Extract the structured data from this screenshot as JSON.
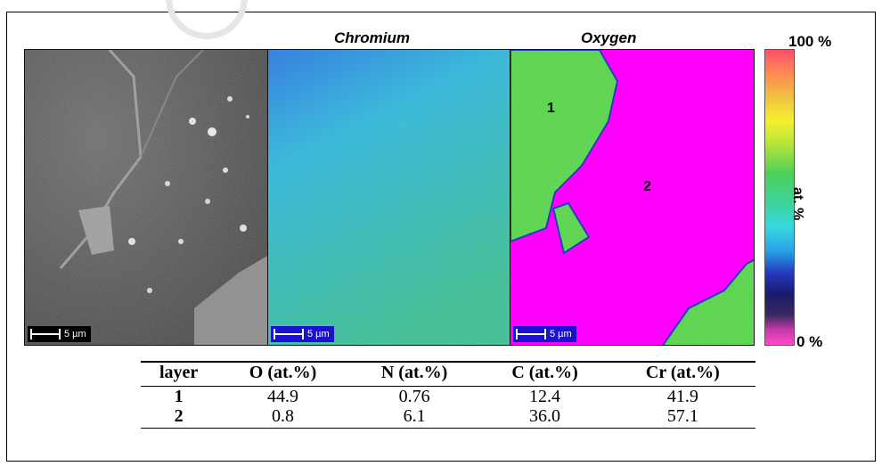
{
  "figure": {
    "panels": [
      {
        "id": "sem",
        "title": "",
        "scale_label": "5 µm"
      },
      {
        "id": "chromium",
        "title": "Chromium",
        "scale_label": "5 µm"
      },
      {
        "id": "oxygen",
        "title": "Oxygen",
        "scale_label": "5 µm"
      }
    ],
    "region_labels": [
      "1",
      "2"
    ],
    "colorbar": {
      "max_label": "100 %",
      "min_label": "0 %",
      "axis_label": "at. %"
    },
    "colors": {
      "magenta": "#ff00ff",
      "green": "#4ccf5a",
      "cyan": "#38c9d6"
    }
  },
  "table": {
    "headers": [
      "layer",
      "O (at.%)",
      "N (at.%)",
      "C (at.%)",
      "Cr (at.%)"
    ],
    "rows": [
      [
        "1",
        "44.9",
        "0.76",
        "12.4",
        "41.9"
      ],
      [
        "2",
        "0.8",
        "6.1",
        "36.0",
        "57.1"
      ]
    ]
  }
}
